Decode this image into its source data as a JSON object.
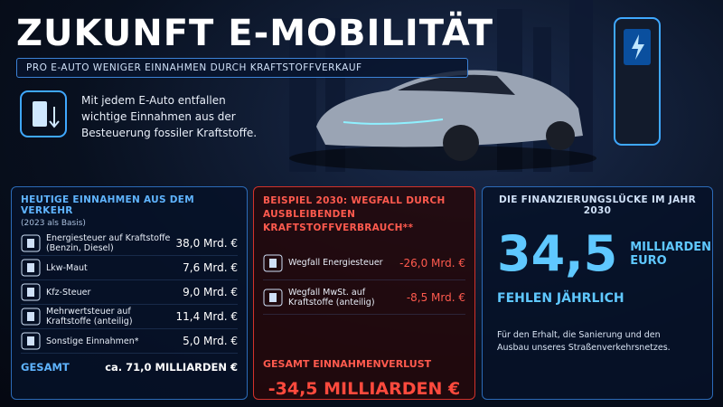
{
  "header": {
    "title": "ZUKUNFT E-MOBILITÄT",
    "subtitle": "PRO E-AUTO WENIGER EINNAHMEN DURCH KRAFTSTOFFVERKAUF",
    "intro": "Mit jedem E-Auto entfallen wichtige Einnahmen aus der Besteuerung fossiler Kraftstoffe."
  },
  "today": {
    "heading": "HEUTIGE EINNAHMEN AUS DEM VERKEHR",
    "note": "(2023 als Basis)",
    "rows": [
      [
        "Energiesteuer auf Kraftstoffe (Benzin, Diesel)",
        "38,0 Mrd. €"
      ],
      [
        "Lkw-Maut",
        "7,6 Mrd. €"
      ],
      [
        "Kfz-Steuer",
        "9,0 Mrd. €"
      ],
      [
        "Mehrwertsteuer auf Kraftstoffe (anteilig)",
        "11,4 Mrd. €"
      ],
      [
        "Sonstige Einnahmen*",
        "5,0 Mrd. €"
      ]
    ],
    "total_label": "GESAMT",
    "total_value": "ca. 71,0 MILLIARDEN €"
  },
  "example": {
    "heading": "BEISPIEL 2030: WEGFALL DURCH AUSBLEIBENDEN KRAFTSTOFFVERBRAUCH**",
    "rows": [
      [
        "Wegfall Energiesteuer",
        "-26,0 Mrd. €"
      ],
      [
        "Wegfall MwSt. auf Kraftstoffe (anteilig)",
        "-8,5 Mrd. €"
      ]
    ],
    "total_label": "GESAMT EINNAHMENVERLUST",
    "total_value": "-34,5 MILLIARDEN €"
  },
  "gap": {
    "heading": "DIE FINANZIERUNGSLÜCKE IM JAHR 2030",
    "number": "34,5",
    "unit": "MILLIARDEN EURO",
    "caption": "FEHLEN JÄHRLICH",
    "note": "Für den Erhalt, die Sanierung und den Ausbau unseres Straßenverkehrsnetzes."
  }
}
